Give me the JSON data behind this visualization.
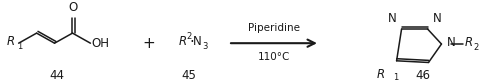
{
  "fig_width": 5.0,
  "fig_height": 0.83,
  "dpi": 100,
  "bg_color": "#ffffff",
  "font_color": "#1a1a1a",
  "line_color": "#1a1a1a",
  "lw": 1.1,
  "label_fontsize": 8.5,
  "small_fontsize": 6.0,
  "number_fontsize": 8.5,
  "arrow_label_top": "Piperidine",
  "arrow_label_bottom": "110°C",
  "compound44": "44",
  "compound45": "45",
  "compound46": "46"
}
